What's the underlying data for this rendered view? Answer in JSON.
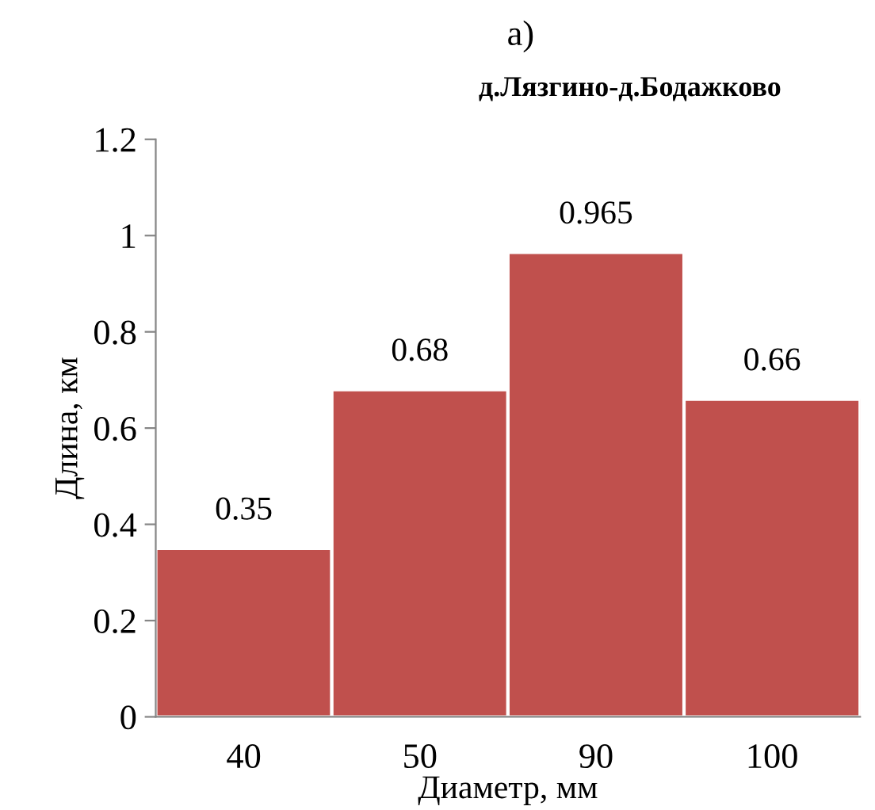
{
  "chart_data": {
    "type": "bar",
    "title": "а)",
    "subtitle": "д.Лязгино-д.Бодажково",
    "xlabel": "Диаметр, мм",
    "ylabel": "Длина, км",
    "categories": [
      "40",
      "50",
      "90",
      "100"
    ],
    "values": [
      0.35,
      0.68,
      0.965,
      0.66
    ],
    "color": "#c0504d",
    "ylim": [
      0,
      1.2
    ],
    "yticks": [
      0,
      0.2,
      0.4,
      0.6,
      0.8,
      1,
      1.2
    ],
    "grid": false,
    "data_labels": true
  }
}
